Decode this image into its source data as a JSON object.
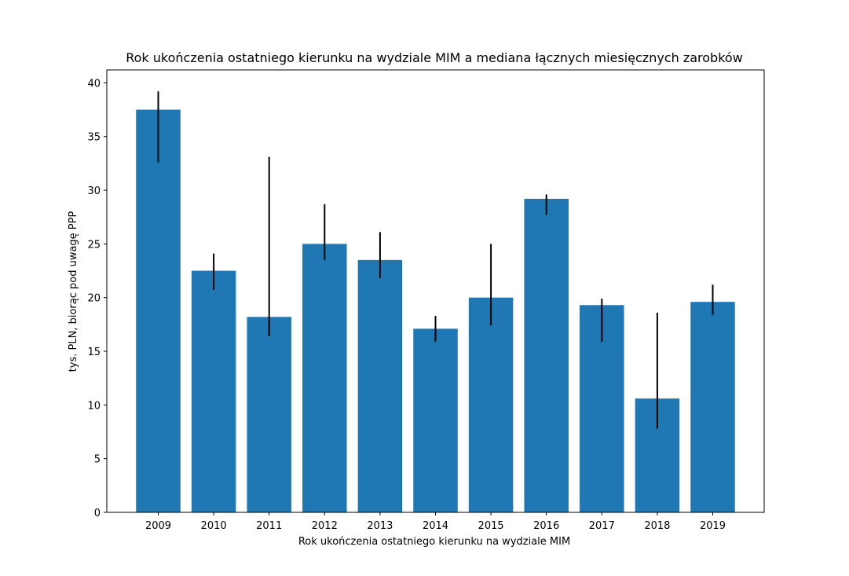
{
  "chart_data": {
    "type": "bar",
    "title": "Rok ukończenia ostatniego kierunku na wydziale MIM a mediana łącznych miesięcznych zarobków",
    "xlabel": "Rok ukończenia ostatniego kierunku na wydziale MIM",
    "ylabel": "tys. PLN, biorąc pod uwagę PPP",
    "categories": [
      "2009",
      "2010",
      "2011",
      "2012",
      "2013",
      "2014",
      "2015",
      "2016",
      "2017",
      "2018",
      "2019"
    ],
    "values": [
      37.5,
      22.5,
      18.2,
      25.0,
      23.5,
      17.1,
      20.0,
      29.2,
      19.3,
      10.6,
      19.6
    ],
    "error_low": [
      32.6,
      20.7,
      16.4,
      23.5,
      21.8,
      15.9,
      17.4,
      27.7,
      15.9,
      7.8,
      18.4
    ],
    "error_high": [
      39.2,
      24.1,
      33.1,
      28.7,
      26.1,
      18.3,
      25.0,
      29.6,
      19.9,
      18.6,
      21.2
    ],
    "ylim": [
      0,
      41.2
    ],
    "yticks": [
      "0",
      "5",
      "10",
      "15",
      "20",
      "25",
      "30",
      "35",
      "40"
    ],
    "bar_color": "#1f77b4",
    "errorbar_color": "#000000",
    "grid": false,
    "legend": "none"
  }
}
